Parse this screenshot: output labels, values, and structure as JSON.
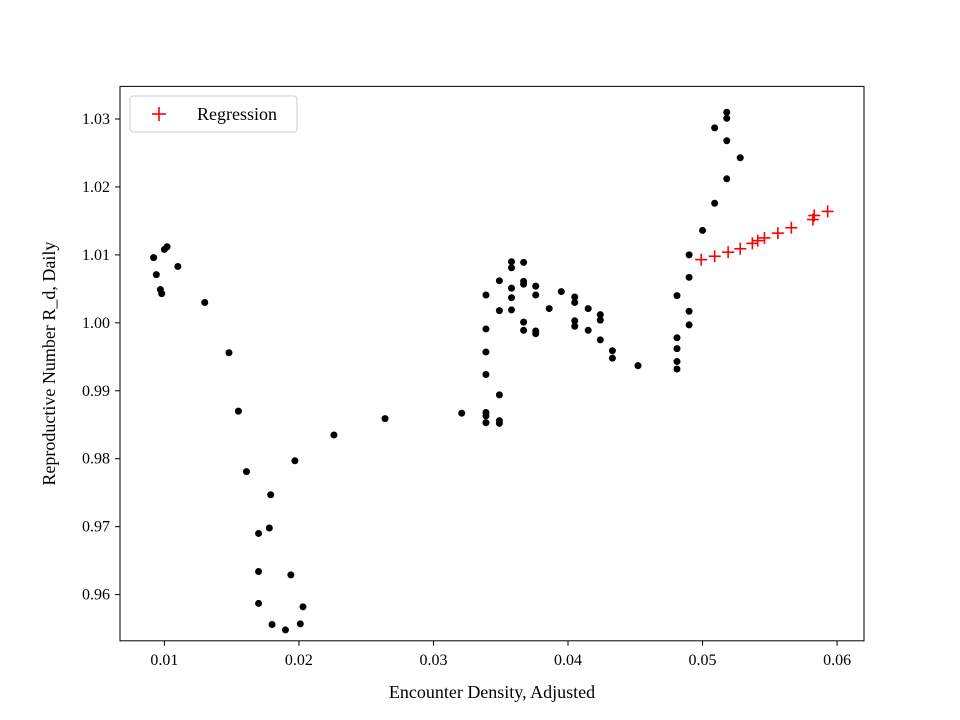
{
  "chart_data": {
    "type": "scatter",
    "xlabel": "Encounter Density, Adjusted",
    "ylabel": "Reproductive Number R_d, Daily",
    "xlim": [
      0.0067,
      0.062
    ],
    "ylim": [
      0.9532,
      1.0348
    ],
    "xticks": [
      0.01,
      0.02,
      0.03,
      0.04,
      0.05,
      0.06
    ],
    "yticks": [
      0.96,
      0.97,
      0.98,
      0.99,
      1.0,
      1.01,
      1.02,
      1.03
    ],
    "grid": false,
    "legend": {
      "position": "top-left",
      "entries": [
        "Regression"
      ]
    },
    "series": [
      {
        "marker": "dot",
        "color": "#000000",
        "points": [
          [
            0.0092,
            1.0096
          ],
          [
            0.0094,
            1.0071
          ],
          [
            0.0097,
            1.0049
          ],
          [
            0.0098,
            1.0043
          ],
          [
            0.01,
            1.0108
          ],
          [
            0.0102,
            1.0112
          ],
          [
            0.011,
            1.0083
          ],
          [
            0.013,
            1.003
          ],
          [
            0.0148,
            0.9956
          ],
          [
            0.0155,
            0.987
          ],
          [
            0.0161,
            0.9781
          ],
          [
            0.017,
            0.969
          ],
          [
            0.017,
            0.9634
          ],
          [
            0.017,
            0.9587
          ],
          [
            0.0178,
            0.9698
          ],
          [
            0.0179,
            0.9747
          ],
          [
            0.018,
            0.9556
          ],
          [
            0.019,
            0.9548
          ],
          [
            0.0194,
            0.9629
          ],
          [
            0.0197,
            0.9797
          ],
          [
            0.0201,
            0.9557
          ],
          [
            0.0203,
            0.9582
          ],
          [
            0.0226,
            0.9835
          ],
          [
            0.0264,
            0.9859
          ],
          [
            0.0321,
            0.9867
          ],
          [
            0.0339,
            0.9868
          ],
          [
            0.0339,
            0.9863
          ],
          [
            0.0339,
            0.9853
          ],
          [
            0.0339,
            0.9924
          ],
          [
            0.0339,
            0.9957
          ],
          [
            0.0339,
            0.9991
          ],
          [
            0.0339,
            1.0041
          ],
          [
            0.0349,
            0.9894
          ],
          [
            0.0349,
            0.9856
          ],
          [
            0.0349,
            0.9852
          ],
          [
            0.0349,
            1.0018
          ],
          [
            0.0349,
            1.0062
          ],
          [
            0.0358,
            1.009
          ],
          [
            0.0358,
            1.0081
          ],
          [
            0.0358,
            1.0051
          ],
          [
            0.0358,
            1.0037
          ],
          [
            0.0358,
            1.0019
          ],
          [
            0.0367,
            1.0089
          ],
          [
            0.0367,
            1.0061
          ],
          [
            0.0367,
            1.0057
          ],
          [
            0.0367,
            1.0001
          ],
          [
            0.0367,
            0.9989
          ],
          [
            0.0376,
            1.0054
          ],
          [
            0.0376,
            1.0041
          ],
          [
            0.0376,
            0.9988
          ],
          [
            0.0376,
            0.9984
          ],
          [
            0.0386,
            1.0021
          ],
          [
            0.0395,
            1.0046
          ],
          [
            0.0405,
            1.0038
          ],
          [
            0.0405,
            1.003
          ],
          [
            0.0405,
            1.0003
          ],
          [
            0.0405,
            0.9995
          ],
          [
            0.0415,
            1.0021
          ],
          [
            0.0415,
            0.9989
          ],
          [
            0.0424,
            1.0012
          ],
          [
            0.0424,
            1.0004
          ],
          [
            0.0424,
            0.9975
          ],
          [
            0.0433,
            0.9959
          ],
          [
            0.0433,
            0.9948
          ],
          [
            0.0452,
            0.9937
          ],
          [
            0.0481,
            1.004
          ],
          [
            0.0481,
            0.9978
          ],
          [
            0.0481,
            0.9962
          ],
          [
            0.0481,
            0.9943
          ],
          [
            0.0481,
            0.9932
          ],
          [
            0.049,
            1.01
          ],
          [
            0.049,
            1.0067
          ],
          [
            0.049,
            1.0017
          ],
          [
            0.049,
            0.9997
          ],
          [
            0.05,
            1.0136
          ],
          [
            0.0509,
            1.0287
          ],
          [
            0.0509,
            1.0176
          ],
          [
            0.0518,
            1.031
          ],
          [
            0.0518,
            1.0301
          ],
          [
            0.0518,
            1.0268
          ],
          [
            0.0518,
            1.0212
          ],
          [
            0.0528,
            1.0243
          ]
        ]
      },
      {
        "name": "Regression",
        "marker": "plus",
        "color": "#ff0000",
        "points": [
          [
            0.0499,
            1.0093
          ],
          [
            0.0509,
            1.0098
          ],
          [
            0.0519,
            1.0104
          ],
          [
            0.0528,
            1.0109
          ],
          [
            0.0537,
            1.0117
          ],
          [
            0.0541,
            1.0121
          ],
          [
            0.0546,
            1.0125
          ],
          [
            0.0556,
            1.0132
          ],
          [
            0.0566,
            1.014
          ],
          [
            0.0582,
            1.0152
          ],
          [
            0.0583,
            1.0158
          ],
          [
            0.0593,
            1.0164
          ]
        ]
      }
    ]
  }
}
